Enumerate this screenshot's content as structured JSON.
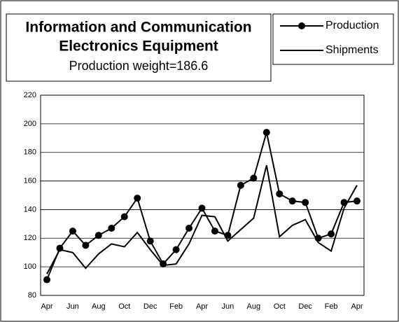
{
  "chart_data": {
    "type": "line",
    "title": [
      "Information and Communication",
      "Electronics Equipment"
    ],
    "subtitle": "Production weight=186.6",
    "categories": [
      "Apr",
      null,
      "Jun",
      null,
      "Aug",
      null,
      "Oct",
      null,
      "Dec",
      null,
      "Feb",
      null,
      "Apr",
      null,
      "Jun",
      null,
      "Aug",
      null,
      "Oct",
      null,
      "Dec",
      null,
      "Feb",
      null,
      "Apr"
    ],
    "series": [
      {
        "name": "Production",
        "color": "#000000",
        "marker": true,
        "values": [
          91,
          113,
          125,
          115,
          122,
          127,
          135,
          148,
          118,
          102,
          112,
          127,
          141,
          125,
          122,
          157,
          162,
          194,
          151,
          146,
          145,
          120,
          123,
          145,
          146
        ]
      },
      {
        "name": "Shipments",
        "color": "#000000",
        "marker": false,
        "values": [
          95,
          112,
          110,
          99,
          109,
          116,
          114,
          124,
          112,
          101,
          102,
          116,
          136,
          135,
          118,
          126,
          134,
          171,
          121,
          129,
          133,
          117,
          111,
          141,
          157
        ]
      }
    ],
    "ylim": [
      80,
      220
    ],
    "yticks": [
      80,
      100,
      120,
      140,
      160,
      180,
      200,
      220
    ],
    "grid": true,
    "legend": "top-right"
  }
}
